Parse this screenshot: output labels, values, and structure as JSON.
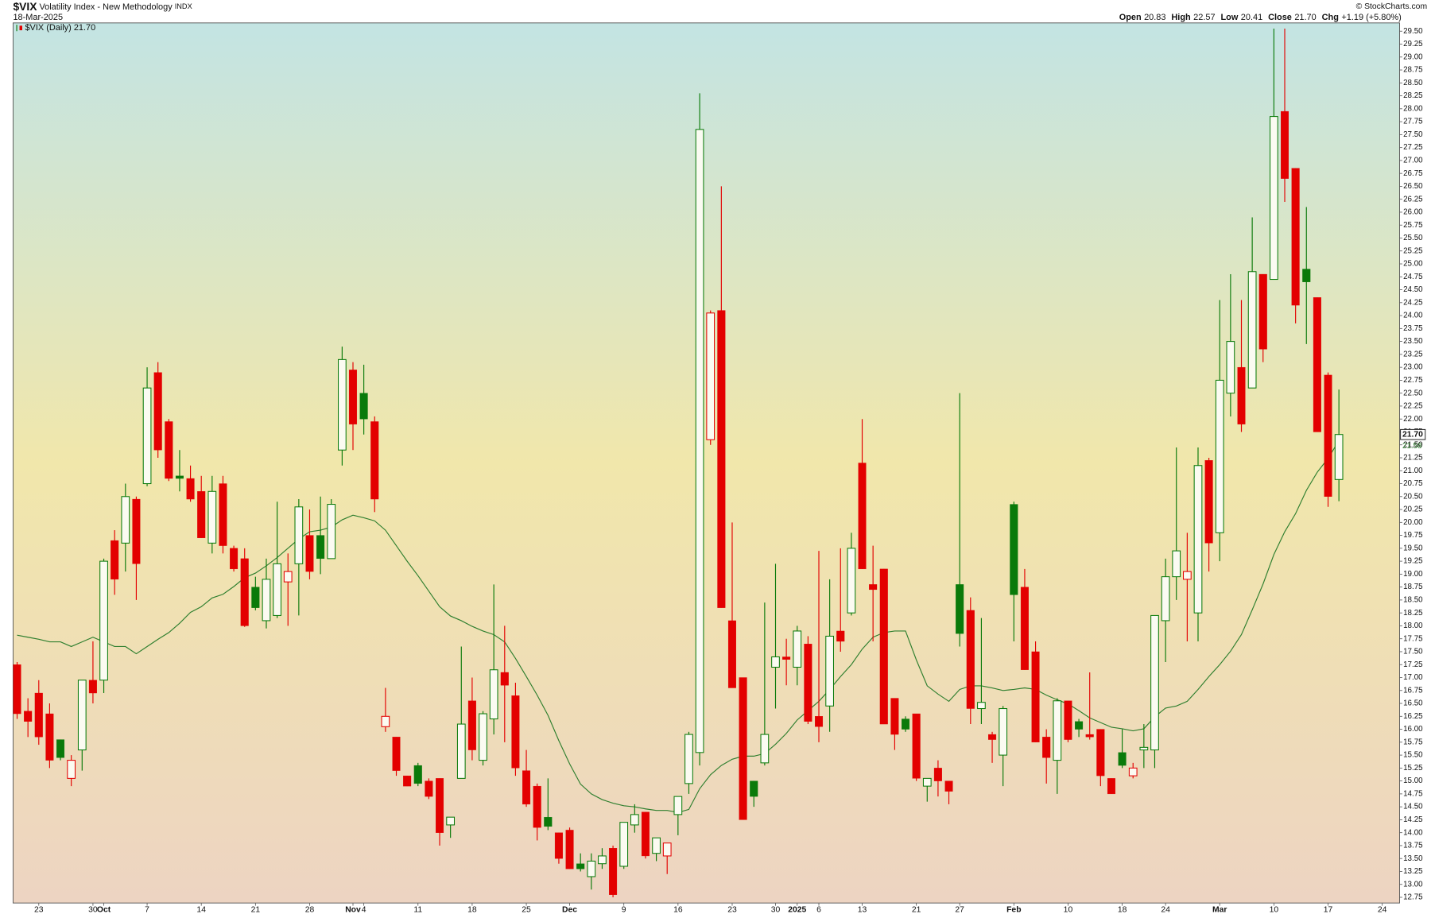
{
  "header": {
    "symbol": "$VIX",
    "name": "Volatility Index - New Methodology",
    "exchange": "INDX",
    "date": "18-Mar-2025",
    "copyright": "© StockCharts.com",
    "quote": [
      {
        "label": "Open",
        "value": "20.83"
      },
      {
        "label": "High",
        "value": "22.57"
      },
      {
        "label": "Low",
        "value": "20.41"
      },
      {
        "label": "Close",
        "value": "21.70"
      },
      {
        "label": "Chg",
        "value": "+1.19 (+5.80%)"
      }
    ]
  },
  "chart_data": {
    "type": "candlestick",
    "categories": [
      null,
      null,
      "23",
      null,
      null,
      null,
      null,
      "30",
      "Oct",
      null,
      null,
      null,
      "7",
      null,
      null,
      null,
      null,
      "14",
      null,
      null,
      null,
      null,
      "21",
      null,
      null,
      null,
      null,
      "28",
      null,
      null,
      null,
      "Nov",
      "4",
      null,
      null,
      null,
      null,
      "11",
      null,
      null,
      null,
      null,
      "18",
      null,
      null,
      null,
      null,
      "25",
      null,
      null,
      null,
      "Dec",
      null,
      null,
      null,
      null,
      "9",
      null,
      null,
      null,
      null,
      "16",
      null,
      null,
      null,
      null,
      "23",
      null,
      null,
      null,
      "30",
      null,
      "2025",
      null,
      "6",
      null,
      null,
      null,
      "13",
      null,
      null,
      null,
      null,
      "21",
      null,
      null,
      null,
      "27",
      null,
      null,
      null,
      null,
      "Feb",
      null,
      null,
      null,
      null,
      "10",
      null,
      null,
      null,
      null,
      "18",
      null,
      null,
      null,
      "24",
      null,
      null,
      null,
      null,
      "Mar",
      null,
      null,
      null,
      null,
      "10",
      null,
      null,
      null,
      null,
      "17",
      null,
      null,
      null,
      null,
      "24"
    ],
    "series": [
      {
        "name": "$VIX (Daily)",
        "up_color": "#0a7a0a",
        "down_color": "#e30000",
        "open": [
          17.25,
          16.35,
          16.7,
          16.3,
          15.8,
          15.05,
          15.6,
          16.95,
          16.95,
          19.65,
          19.6,
          20.45,
          20.75,
          22.9,
          21.95,
          20.9,
          20.85,
          20.6,
          19.6,
          20.75,
          19.5,
          19.3,
          18.75,
          18.1,
          18.2,
          18.85,
          19.2,
          19.75,
          19.75,
          19.3,
          21.4,
          22.95,
          22.5,
          21.95,
          16.05,
          15.85,
          15.1,
          15.3,
          15.0,
          15.05,
          14.15,
          15.05,
          16.55,
          15.4,
          16.2,
          17.1,
          16.65,
          15.2,
          14.9,
          14.3,
          14.0,
          14.05,
          13.4,
          13.15,
          13.4,
          13.7,
          13.35,
          14.15,
          14.4,
          13.6,
          13.55,
          14.35,
          14.95,
          15.55,
          21.6,
          24.1,
          18.1,
          17.0,
          15.0,
          15.35,
          17.2,
          17.4,
          17.2,
          17.65,
          16.25,
          16.45,
          17.9,
          18.25,
          21.15,
          18.8,
          19.1,
          16.6,
          16.2,
          16.3,
          14.9,
          15.25,
          15.0,
          18.8,
          18.3,
          16.4,
          15.9,
          15.5,
          20.35,
          18.75,
          17.5,
          15.85,
          15.4,
          16.55,
          16.15,
          15.9,
          16.0,
          15.05,
          15.55,
          15.1,
          15.6,
          15.6,
          18.1,
          18.95,
          18.9,
          18.25,
          21.2,
          19.8,
          22.5,
          23.0,
          22.6,
          24.8,
          24.7,
          27.95,
          26.85,
          24.9,
          24.35,
          22.85,
          20.83,
          null,
          null,
          null,
          null
        ],
        "high": [
          17.3,
          16.6,
          16.95,
          16.5,
          15.8,
          15.5,
          16.95,
          17.7,
          19.3,
          19.85,
          20.75,
          20.5,
          23.0,
          23.1,
          22.0,
          21.4,
          21.1,
          20.9,
          20.9,
          20.9,
          19.55,
          19.5,
          18.95,
          19.3,
          20.4,
          19.4,
          20.45,
          20.25,
          20.5,
          20.45,
          23.4,
          23.1,
          23.05,
          22.05,
          16.8,
          15.85,
          15.1,
          15.35,
          15.05,
          15.05,
          14.3,
          17.6,
          17.0,
          16.35,
          18.8,
          18.0,
          16.9,
          15.6,
          14.95,
          15.05,
          14.0,
          14.1,
          13.6,
          13.6,
          13.7,
          13.75,
          14.2,
          14.55,
          14.4,
          13.9,
          13.8,
          14.7,
          15.95,
          28.3,
          24.1,
          26.5,
          20.0,
          17.0,
          15.0,
          18.45,
          19.2,
          17.75,
          18.0,
          17.8,
          19.45,
          18.9,
          19.5,
          19.8,
          22.0,
          19.55,
          19.1,
          16.6,
          16.25,
          16.3,
          15.05,
          15.4,
          15.0,
          22.5,
          18.55,
          18.15,
          15.95,
          16.45,
          20.4,
          19.1,
          17.7,
          16.0,
          16.6,
          16.55,
          16.2,
          17.1,
          16.0,
          15.05,
          16.0,
          15.35,
          16.1,
          18.2,
          19.3,
          21.45,
          19.8,
          21.45,
          21.25,
          24.3,
          24.8,
          24.3,
          25.9,
          24.8,
          29.55,
          29.55,
          26.85,
          26.1,
          24.35,
          22.9,
          22.57,
          null,
          null,
          null,
          null
        ],
        "low": [
          16.2,
          15.85,
          15.7,
          15.25,
          15.4,
          14.9,
          15.2,
          16.5,
          16.7,
          18.6,
          19.05,
          18.5,
          20.7,
          21.25,
          20.8,
          20.6,
          20.4,
          19.7,
          19.4,
          19.4,
          19.05,
          17.98,
          18.3,
          17.95,
          18.15,
          18.0,
          18.2,
          18.9,
          19.0,
          19.3,
          21.1,
          21.4,
          21.7,
          20.2,
          15.95,
          15.1,
          14.9,
          14.9,
          14.65,
          13.75,
          13.9,
          15.05,
          15.4,
          15.3,
          15.9,
          15.75,
          15.1,
          14.5,
          13.85,
          14.05,
          13.4,
          13.3,
          13.25,
          12.9,
          13.3,
          12.75,
          13.3,
          14.0,
          13.5,
          13.45,
          13.2,
          13.95,
          14.75,
          15.3,
          21.5,
          18.35,
          16.8,
          14.25,
          14.5,
          15.3,
          16.4,
          16.85,
          16.85,
          16.1,
          15.75,
          15.95,
          17.5,
          18.2,
          19.1,
          17.7,
          16.1,
          15.6,
          15.95,
          15.0,
          14.6,
          14.7,
          14.55,
          17.6,
          16.1,
          16.1,
          15.35,
          14.9,
          17.7,
          17.15,
          15.75,
          14.95,
          14.75,
          15.75,
          15.85,
          15.8,
          14.9,
          14.75,
          15.25,
          15.05,
          15.25,
          15.25,
          17.3,
          18.5,
          17.7,
          17.7,
          19.05,
          19.25,
          22.05,
          21.75,
          22.6,
          23.1,
          24.7,
          26.2,
          23.85,
          23.45,
          21.75,
          20.3,
          20.41,
          null,
          null,
          null,
          null
        ],
        "close": [
          16.3,
          16.15,
          15.85,
          15.4,
          15.45,
          15.4,
          16.95,
          16.7,
          19.25,
          18.9,
          20.5,
          19.2,
          22.6,
          21.4,
          20.85,
          20.85,
          20.45,
          19.7,
          20.6,
          19.55,
          19.1,
          18.0,
          18.35,
          18.9,
          19.2,
          19.05,
          20.3,
          19.05,
          19.3,
          20.35,
          23.15,
          21.9,
          22.0,
          20.45,
          16.25,
          15.2,
          14.9,
          14.95,
          14.7,
          14.0,
          14.3,
          16.1,
          15.6,
          16.3,
          17.15,
          16.85,
          15.25,
          14.55,
          14.1,
          14.12,
          13.5,
          13.3,
          13.3,
          13.45,
          13.55,
          12.8,
          14.2,
          14.35,
          13.55,
          13.9,
          13.8,
          14.7,
          15.9,
          27.6,
          24.05,
          18.35,
          16.8,
          14.25,
          14.7,
          15.9,
          17.4,
          17.35,
          17.9,
          16.15,
          16.05,
          17.8,
          17.7,
          19.5,
          19.1,
          18.7,
          16.1,
          15.9,
          16.0,
          15.05,
          15.05,
          15.0,
          14.8,
          17.85,
          16.4,
          16.52,
          15.8,
          16.4,
          18.6,
          17.15,
          15.75,
          15.45,
          16.55,
          15.8,
          16.0,
          15.85,
          15.1,
          14.75,
          15.3,
          15.25,
          15.65,
          18.2,
          18.95,
          19.45,
          19.05,
          21.1,
          19.6,
          22.75,
          23.5,
          21.9,
          24.85,
          23.35,
          27.85,
          26.65,
          24.2,
          24.65,
          21.75,
          20.5,
          21.7,
          null,
          null,
          null,
          null
        ]
      }
    ],
    "moving_average": {
      "color": "#2f7f2f",
      "values": [
        17.82,
        17.78,
        17.74,
        17.69,
        17.69,
        17.6,
        17.69,
        17.78,
        17.69,
        17.6,
        17.6,
        17.46,
        17.6,
        17.74,
        17.87,
        18.05,
        18.26,
        18.37,
        18.54,
        18.61,
        18.76,
        18.93,
        19.02,
        19.16,
        19.32,
        19.5,
        19.68,
        19.82,
        19.85,
        19.91,
        20.05,
        20.14,
        20.09,
        20.03,
        19.85,
        19.55,
        19.25,
        18.97,
        18.67,
        18.37,
        18.19,
        18.1,
        17.99,
        17.9,
        17.83,
        17.69,
        17.37,
        17.02,
        16.66,
        16.27,
        15.78,
        15.33,
        14.94,
        14.75,
        14.64,
        14.57,
        14.52,
        14.5,
        14.46,
        14.43,
        14.43,
        14.39,
        14.45,
        14.85,
        15.12,
        15.3,
        15.42,
        15.48,
        15.48,
        15.53,
        15.71,
        15.92,
        16.18,
        16.36,
        16.54,
        16.77,
        17.02,
        17.25,
        17.55,
        17.78,
        17.87,
        17.9,
        17.9,
        17.34,
        16.84,
        16.68,
        16.54,
        16.77,
        16.84,
        16.84,
        16.8,
        16.75,
        16.77,
        16.8,
        16.77,
        16.66,
        16.57,
        16.49,
        16.36,
        16.22,
        16.13,
        16.04,
        16.01,
        15.97,
        16.01,
        16.24,
        16.41,
        16.45,
        16.54,
        16.77,
        17.02,
        17.25,
        17.51,
        17.83,
        18.31,
        18.81,
        19.38,
        19.82,
        20.17,
        20.62,
        20.97,
        21.24,
        21.58,
        null,
        null,
        null,
        null
      ]
    },
    "last_close_label": "21.70",
    "last_ma_label": "21.58",
    "ylim": [
      12.64,
      29.66
    ],
    "yticks": [
      12.75,
      {
        "value": 13,
        "label": "13.00"
      },
      13.25,
      {
        "value": 13.5,
        "label": "13.50"
      },
      13.75,
      {
        "value": 14,
        "label": "14.00"
      },
      14.25,
      {
        "value": 14.5,
        "label": "14.50"
      },
      14.75,
      {
        "value": 15,
        "label": "15.00"
      },
      15.25,
      {
        "value": 15.5,
        "label": "15.50"
      },
      15.75,
      {
        "value": 16,
        "label": "16.00"
      },
      16.25,
      {
        "value": 16.5,
        "label": "16.50"
      },
      16.75,
      {
        "value": 17,
        "label": "17.00"
      },
      17.25,
      {
        "value": 17.5,
        "label": "17.50"
      },
      17.75,
      {
        "value": 18,
        "label": "18.00"
      },
      18.25,
      {
        "value": 18.5,
        "label": "18.50"
      },
      18.75,
      {
        "value": 19,
        "label": "19.00"
      },
      19.25,
      {
        "value": 19.5,
        "label": "19.50"
      },
      19.75,
      {
        "value": 20,
        "label": "20.00"
      },
      20.25,
      {
        "value": 20.5,
        "label": "20.50"
      },
      20.75,
      {
        "value": 21,
        "label": "21.00"
      },
      21.25,
      {
        "value": 21.5,
        "label": "21.50"
      },
      21.75,
      {
        "value": 22,
        "label": "22.00"
      },
      22.25,
      {
        "value": 22.5,
        "label": "22.50"
      },
      22.75,
      {
        "value": 23,
        "label": "23.00"
      },
      23.25,
      {
        "value": 23.5,
        "label": "23.50"
      },
      23.75,
      {
        "value": 24,
        "label": "24.00"
      },
      24.25,
      {
        "value": 24.5,
        "label": "24.50"
      },
      24.75,
      {
        "value": 25,
        "label": "25.00"
      },
      25.25,
      {
        "value": 25.5,
        "label": "25.50"
      },
      25.75,
      {
        "value": 26,
        "label": "26.00"
      },
      26.25,
      {
        "value": 26.5,
        "label": "26.50"
      },
      26.75,
      {
        "value": 27,
        "label": "27.00"
      },
      27.25,
      {
        "value": 27.5,
        "label": "27.50"
      },
      27.75,
      {
        "value": 28,
        "label": "28.00"
      },
      28.25,
      {
        "value": 28.5,
        "label": "28.50"
      },
      28.75,
      {
        "value": 29,
        "label": "29.00"
      },
      29.25,
      {
        "value": 29.5,
        "label": "29.50"
      }
    ],
    "grid": false
  }
}
